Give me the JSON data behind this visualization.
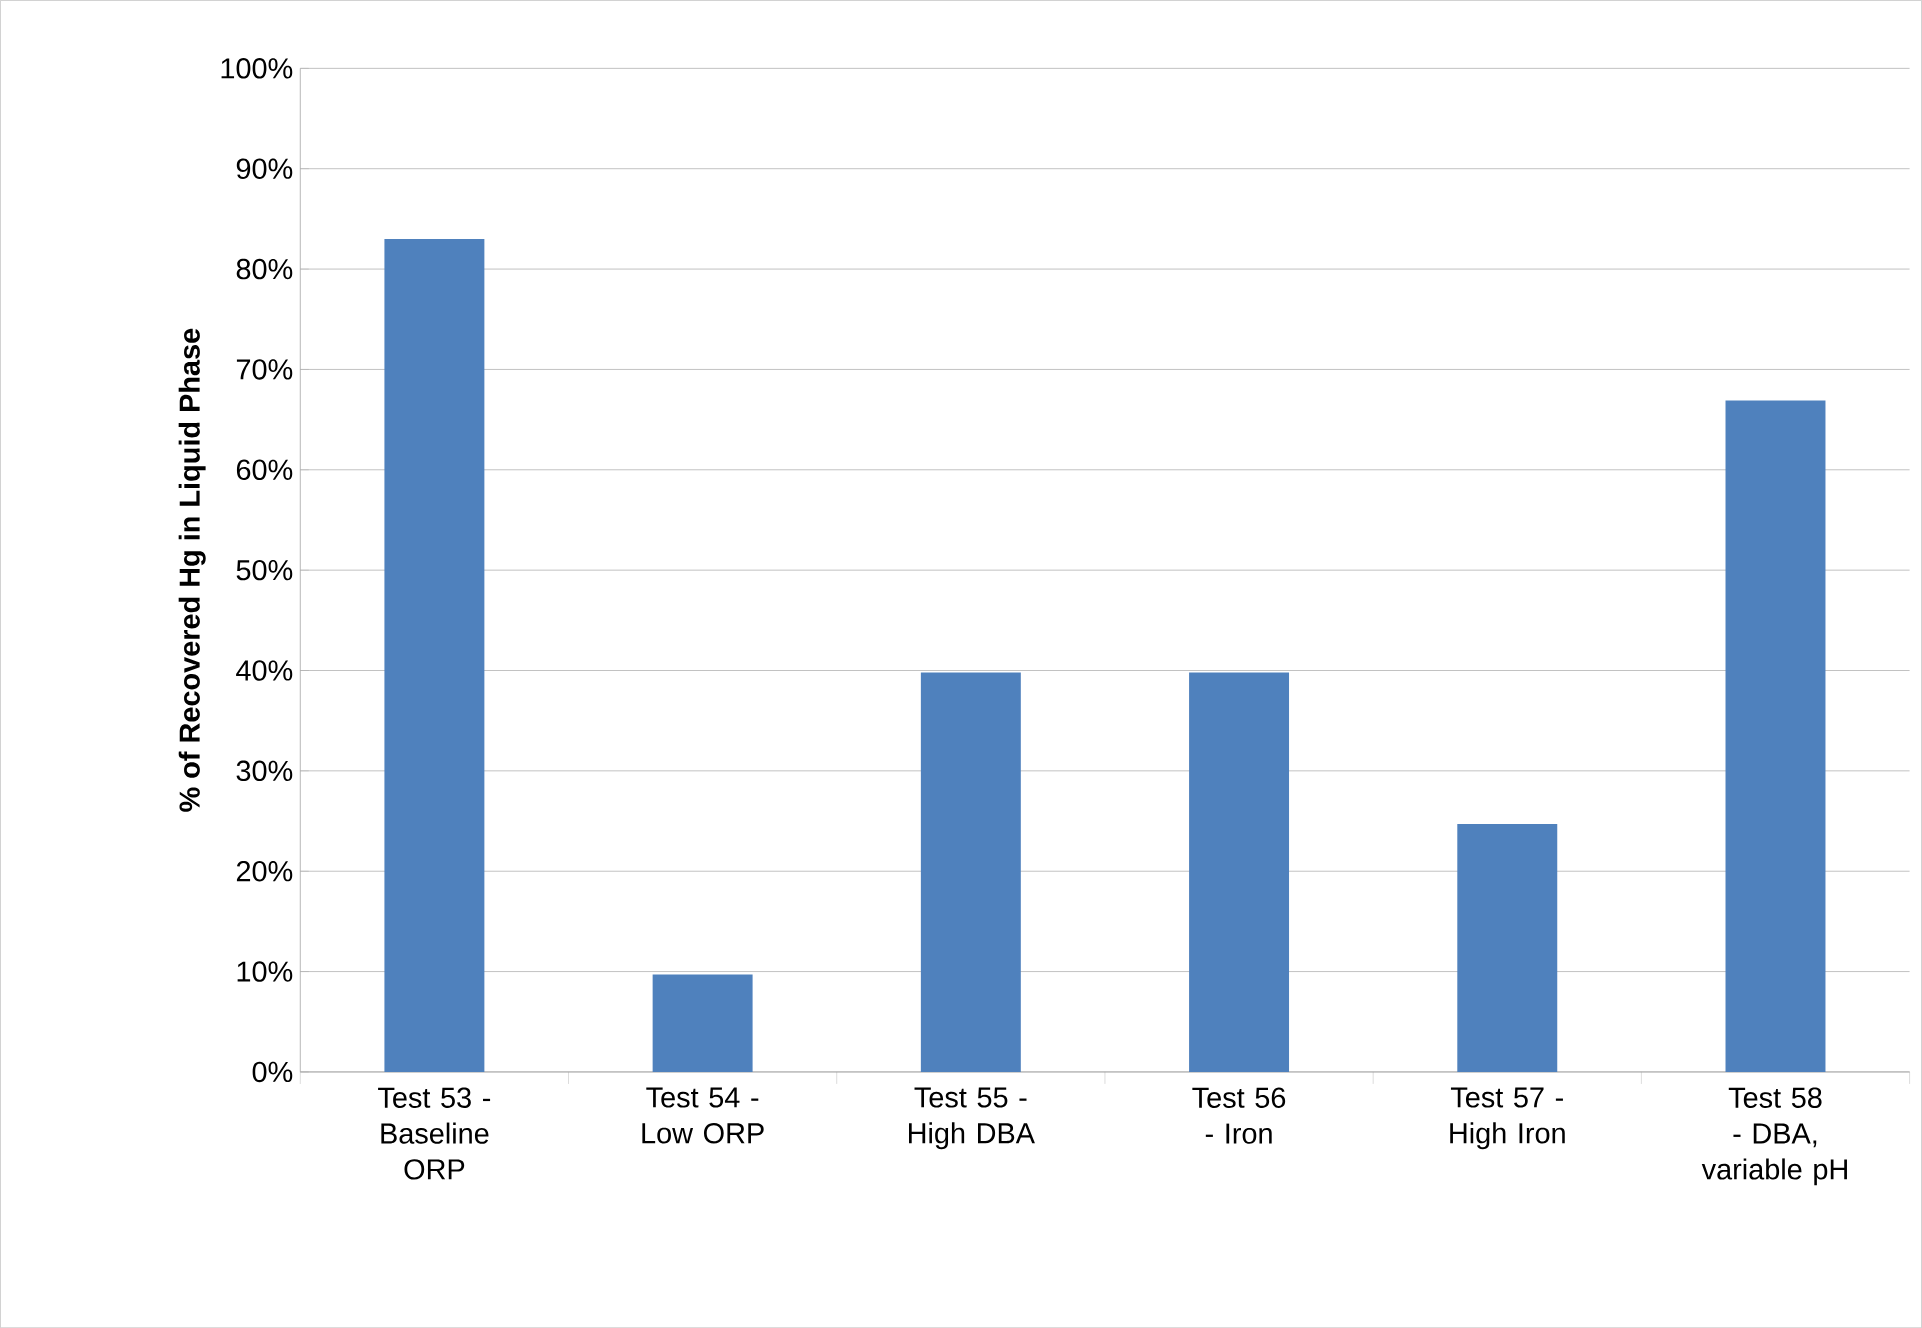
{
  "chart_data": {
    "type": "bar",
    "ylabel": "% of Recovered Hg in Liquid Phase",
    "categories": [
      "Test 53  - Baseline ORP",
      "Test 54  - Low ORP",
      "Test 55  - High DBA",
      "Test 56  - Iron",
      "Test 57 - High Iron",
      "Test 58 - DBA, variable pH"
    ],
    "values": [
      83,
      9.7,
      39.8,
      39.8,
      24.7,
      66.9
    ],
    "color": "#4f81bd",
    "ylim": [
      0,
      100
    ],
    "yticks": [
      {
        "value": 0,
        "label": "0%"
      },
      {
        "value": 10,
        "label": "10%"
      },
      {
        "value": 20,
        "label": "20%"
      },
      {
        "value": 30,
        "label": "30%"
      },
      {
        "value": 40,
        "label": "40%"
      },
      {
        "value": 50,
        "label": "50%"
      },
      {
        "value": 60,
        "label": "60%"
      },
      {
        "value": 70,
        "label": "70%"
      },
      {
        "value": 80,
        "label": "80%"
      },
      {
        "value": 90,
        "label": "90%"
      },
      {
        "value": 100,
        "label": "100%"
      }
    ],
    "grid": "y"
  }
}
